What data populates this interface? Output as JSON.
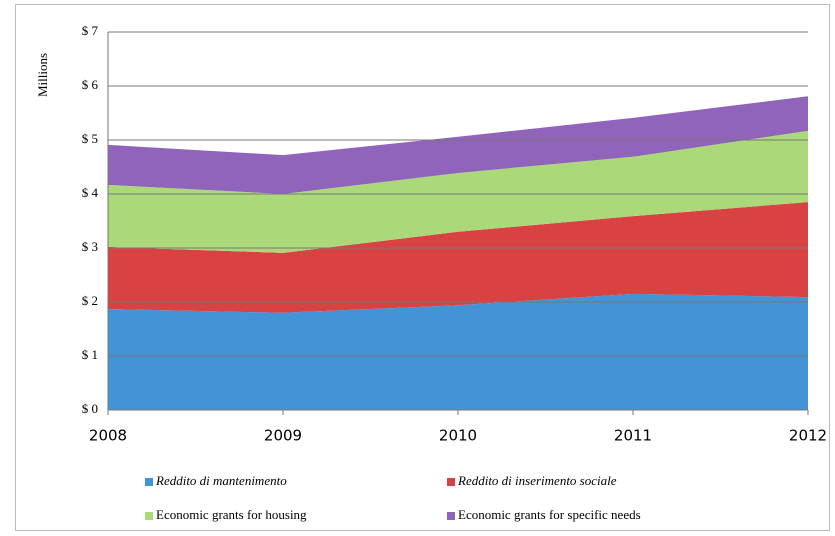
{
  "chart_data": {
    "type": "stacked_area",
    "y_label": "Millions",
    "x": [
      2008,
      2009,
      2010,
      2011,
      2012
    ],
    "xlim": [
      2008,
      2012
    ],
    "xticks": [
      2008,
      2009,
      2010,
      2011,
      2012
    ],
    "ylim": [
      0,
      7
    ],
    "yticks": [
      {
        "value": 0,
        "label": "$ 0"
      },
      {
        "value": 1,
        "label": "$ 1"
      },
      {
        "value": 2,
        "label": "$ 2"
      },
      {
        "value": 3,
        "label": "$ 3"
      },
      {
        "value": 4,
        "label": "$ 4"
      },
      {
        "value": 5,
        "label": "$ 5"
      },
      {
        "value": 6,
        "label": "$ 6"
      },
      {
        "value": 7,
        "label": "$ 7"
      }
    ],
    "grid": true,
    "legend": "bottom",
    "series": [
      {
        "name": "Reddito di mantenimento",
        "color": "#4394d6",
        "style": "italic",
        "values": [
          1.87,
          1.8,
          1.94,
          2.15,
          2.09
        ]
      },
      {
        "name": "Reddito di inserimento sociale",
        "color": "#d94242",
        "style": "italic",
        "values": [
          1.15,
          1.11,
          1.36,
          1.44,
          1.76
        ]
      },
      {
        "name": "Economic grants for housing",
        "color": "#abd97a",
        "style": "normal",
        "values": [
          1.15,
          1.09,
          1.09,
          1.1,
          1.32
        ]
      },
      {
        "name": "Economic grants for specific needs",
        "color": "#9064bb",
        "style": "normal",
        "values": [
          0.74,
          0.72,
          0.67,
          0.72,
          0.64
        ]
      }
    ]
  }
}
